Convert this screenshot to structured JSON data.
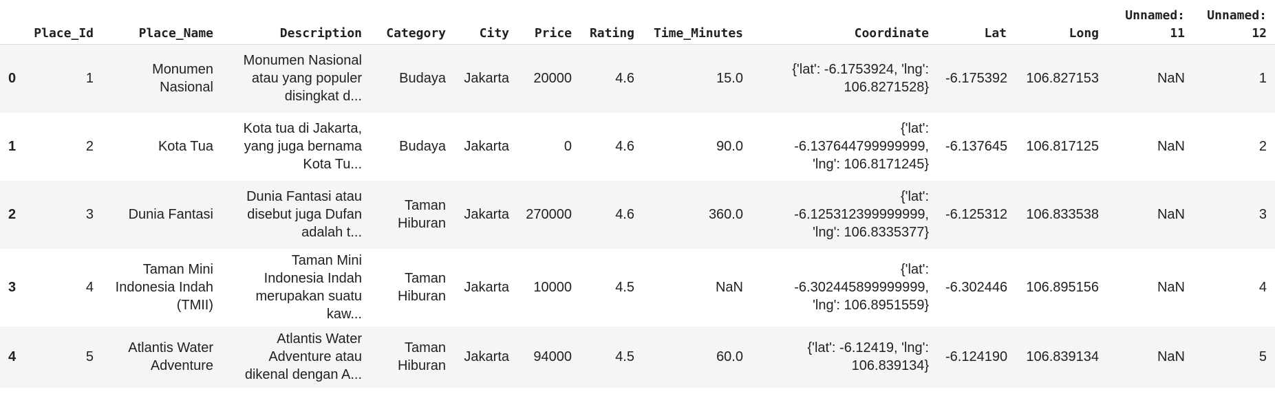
{
  "table": {
    "columns": [
      {
        "key": "index",
        "lines": [
          ""
        ]
      },
      {
        "key": "place_id",
        "lines": [
          "Place_Id"
        ]
      },
      {
        "key": "place_name",
        "lines": [
          "Place_Name"
        ]
      },
      {
        "key": "description",
        "lines": [
          "Description"
        ]
      },
      {
        "key": "category",
        "lines": [
          "Category"
        ]
      },
      {
        "key": "city",
        "lines": [
          "City"
        ]
      },
      {
        "key": "price",
        "lines": [
          "Price"
        ]
      },
      {
        "key": "rating",
        "lines": [
          "Rating"
        ]
      },
      {
        "key": "time_minutes",
        "lines": [
          "Time_Minutes"
        ]
      },
      {
        "key": "coordinate",
        "lines": [
          "Coordinate"
        ]
      },
      {
        "key": "lat",
        "lines": [
          "Lat"
        ]
      },
      {
        "key": "long",
        "lines": [
          "Long"
        ]
      },
      {
        "key": "unnamed_11",
        "lines": [
          "Unnamed:",
          "11"
        ]
      },
      {
        "key": "unnamed_12",
        "lines": [
          "Unnamed:",
          "12"
        ]
      }
    ],
    "rows": [
      {
        "index": "0",
        "place_id": [
          "1"
        ],
        "place_name": [
          "Monumen",
          "Nasional"
        ],
        "description": [
          "Monumen Nasional",
          "atau yang populer",
          "disingkat d..."
        ],
        "category": [
          "Budaya"
        ],
        "city": [
          "Jakarta"
        ],
        "price": [
          "20000"
        ],
        "rating": [
          "4.6"
        ],
        "time_minutes": [
          "15.0"
        ],
        "coordinate": [
          "{'lat': -6.1753924, 'lng':",
          "106.8271528}"
        ],
        "lat": [
          "-6.175392"
        ],
        "long": [
          "106.827153"
        ],
        "unnamed_11": [
          "NaN"
        ],
        "unnamed_12": [
          "1"
        ]
      },
      {
        "index": "1",
        "place_id": [
          "2"
        ],
        "place_name": [
          "Kota Tua"
        ],
        "description": [
          "Kota tua di Jakarta,",
          "yang juga bernama",
          "Kota Tu..."
        ],
        "category": [
          "Budaya"
        ],
        "city": [
          "Jakarta"
        ],
        "price": [
          "0"
        ],
        "rating": [
          "4.6"
        ],
        "time_minutes": [
          "90.0"
        ],
        "coordinate": [
          "{'lat':",
          "-6.137644799999999,",
          "'lng': 106.8171245}"
        ],
        "lat": [
          "-6.137645"
        ],
        "long": [
          "106.817125"
        ],
        "unnamed_11": [
          "NaN"
        ],
        "unnamed_12": [
          "2"
        ]
      },
      {
        "index": "2",
        "place_id": [
          "3"
        ],
        "place_name": [
          "Dunia Fantasi"
        ],
        "description": [
          "Dunia Fantasi atau",
          "disebut juga Dufan",
          "adalah t..."
        ],
        "category": [
          "Taman",
          "Hiburan"
        ],
        "city": [
          "Jakarta"
        ],
        "price": [
          "270000"
        ],
        "rating": [
          "4.6"
        ],
        "time_minutes": [
          "360.0"
        ],
        "coordinate": [
          "{'lat':",
          "-6.125312399999999,",
          "'lng': 106.8335377}"
        ],
        "lat": [
          "-6.125312"
        ],
        "long": [
          "106.833538"
        ],
        "unnamed_11": [
          "NaN"
        ],
        "unnamed_12": [
          "3"
        ]
      },
      {
        "index": "3",
        "place_id": [
          "4"
        ],
        "place_name": [
          "Taman Mini",
          "Indonesia Indah",
          "(TMII)"
        ],
        "description": [
          "Taman Mini",
          "Indonesia Indah",
          "merupakan suatu",
          "kaw..."
        ],
        "category": [
          "Taman",
          "Hiburan"
        ],
        "city": [
          "Jakarta"
        ],
        "price": [
          "10000"
        ],
        "rating": [
          "4.5"
        ],
        "time_minutes": [
          "NaN"
        ],
        "coordinate": [
          "{'lat':",
          "-6.302445899999999,",
          "'lng': 106.8951559}"
        ],
        "lat": [
          "-6.302446"
        ],
        "long": [
          "106.895156"
        ],
        "unnamed_11": [
          "NaN"
        ],
        "unnamed_12": [
          "4"
        ]
      },
      {
        "index": "4",
        "place_id": [
          "5"
        ],
        "place_name": [
          "Atlantis Water",
          "Adventure"
        ],
        "description": [
          "Atlantis Water",
          "Adventure atau",
          "dikenal dengan A..."
        ],
        "category": [
          "Taman",
          "Hiburan"
        ],
        "city": [
          "Jakarta"
        ],
        "price": [
          "94000"
        ],
        "rating": [
          "4.5"
        ],
        "time_minutes": [
          "60.0"
        ],
        "coordinate": [
          "{'lat': -6.12419, 'lng':",
          "106.839134}"
        ],
        "lat": [
          "-6.124190"
        ],
        "long": [
          "106.839134"
        ],
        "unnamed_11": [
          "NaN"
        ],
        "unnamed_12": [
          "5"
        ]
      }
    ]
  }
}
